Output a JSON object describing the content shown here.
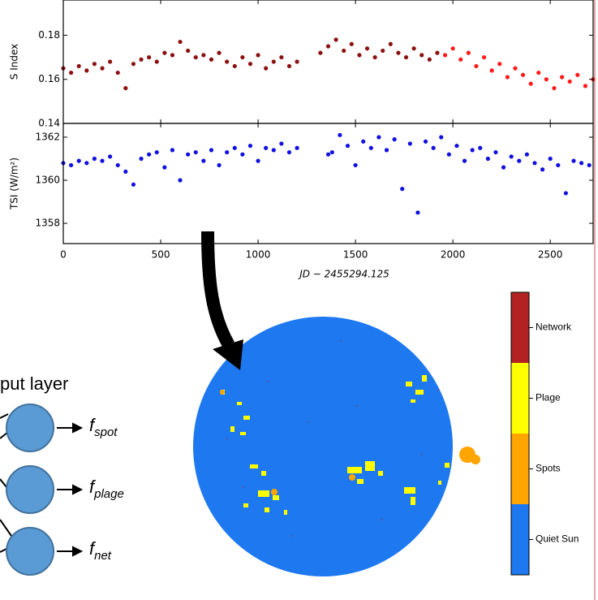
{
  "chart_data": [
    {
      "type": "scatter",
      "ylabel": "S Index",
      "xlim": [
        0,
        2720
      ],
      "xticks": [
        0,
        500,
        1000,
        1500,
        2000,
        2500
      ],
      "ylim": [
        0.14,
        0.196
      ],
      "yticks": [
        0.14,
        0.16,
        0.18
      ],
      "series": [
        {
          "color": "#8b1010",
          "x": [
            0,
            40,
            80,
            120,
            160,
            200,
            240,
            280,
            320,
            360,
            400,
            440,
            480,
            520,
            560,
            600,
            640,
            680,
            720,
            760,
            800,
            840,
            880,
            920,
            960,
            1000,
            1040,
            1080,
            1120,
            1160,
            1200,
            1320,
            1360,
            1400,
            1440,
            1480,
            1520,
            1560,
            1600,
            1640,
            1680,
            1720,
            1760,
            1800,
            1840,
            1880,
            1920
          ],
          "values": [
            0.165,
            0.163,
            0.166,
            0.164,
            0.167,
            0.165,
            0.168,
            0.163,
            0.156,
            0.167,
            0.169,
            0.17,
            0.168,
            0.172,
            0.171,
            0.177,
            0.173,
            0.17,
            0.171,
            0.169,
            0.172,
            0.168,
            0.166,
            0.17,
            0.167,
            0.171,
            0.165,
            0.168,
            0.17,
            0.166,
            0.168,
            0.172,
            0.175,
            0.178,
            0.173,
            0.176,
            0.171,
            0.174,
            0.17,
            0.173,
            0.176,
            0.172,
            0.17,
            0.174,
            0.171,
            0.169,
            0.172
          ]
        },
        {
          "color": "#ff1a1a",
          "x": [
            1960,
            2000,
            2040,
            2080,
            2120,
            2160,
            2200,
            2240,
            2280,
            2320,
            2360,
            2400,
            2440,
            2480,
            2520,
            2560,
            2600,
            2640,
            2680,
            2720
          ],
          "values": [
            0.171,
            0.174,
            0.169,
            0.172,
            0.166,
            0.17,
            0.164,
            0.167,
            0.161,
            0.165,
            0.162,
            0.158,
            0.163,
            0.16,
            0.156,
            0.161,
            0.159,
            0.162,
            0.157,
            0.16
          ]
        }
      ]
    },
    {
      "type": "scatter",
      "ylabel": "TSI (W/m²)",
      "xlabel": "JD − 2455294.125",
      "xlim": [
        0,
        2720
      ],
      "xticks": [
        0,
        500,
        1000,
        1500,
        2000,
        2500
      ],
      "ylim": [
        1357.06,
        1362.64
      ],
      "yticks": [
        1358,
        1360,
        1362
      ],
      "series": [
        {
          "color": "#1010e0",
          "x": [
            0,
            40,
            80,
            120,
            160,
            200,
            240,
            280,
            320,
            360,
            400,
            440,
            480,
            520,
            560,
            600,
            640,
            680,
            720,
            760,
            800,
            840,
            880,
            920,
            960,
            1000,
            1040,
            1080,
            1120,
            1160,
            1200,
            1360,
            1380,
            1420,
            1460,
            1500,
            1540,
            1580,
            1620,
            1660,
            1700,
            1740,
            1780,
            1820,
            1860,
            1900,
            1940,
            1980,
            2020,
            2060,
            2100,
            2140,
            2180,
            2220,
            2260,
            2300,
            2340,
            2380,
            2420,
            2460,
            2500,
            2540,
            2580,
            2620,
            2660,
            2700
          ],
          "values": [
            1360.8,
            1360.7,
            1360.9,
            1360.8,
            1361.0,
            1360.9,
            1361.1,
            1360.7,
            1360.4,
            1359.8,
            1361.0,
            1361.2,
            1361.3,
            1360.6,
            1361.4,
            1360.0,
            1361.2,
            1361.3,
            1360.9,
            1361.4,
            1360.7,
            1361.3,
            1361.5,
            1361.2,
            1361.6,
            1360.9,
            1361.5,
            1361.4,
            1361.7,
            1361.3,
            1361.5,
            1361.2,
            1361.3,
            1362.1,
            1361.6,
            1360.7,
            1361.8,
            1361.5,
            1362.0,
            1361.4,
            1361.9,
            1359.6,
            1361.7,
            1358.5,
            1361.8,
            1361.5,
            1362.0,
            1361.2,
            1361.6,
            1360.9,
            1361.4,
            1361.5,
            1361.0,
            1361.3,
            1360.6,
            1361.1,
            1360.9,
            1361.2,
            1360.8,
            1360.5,
            1361.0,
            1360.7,
            1359.4,
            1360.9,
            1360.8,
            1360.7
          ]
        }
      ]
    }
  ],
  "diagram": {
    "title": "put layer",
    "outputs": [
      {
        "symbol": "f",
        "sub": "spot"
      },
      {
        "symbol": "f",
        "sub": "plage"
      },
      {
        "symbol": "f",
        "sub": "net"
      }
    ]
  },
  "colorbar": {
    "labels": [
      "Network",
      "Plage",
      "Spots",
      "Quiet Sun"
    ],
    "colors": [
      "#b22222",
      "#ffff00",
      "#ffa500",
      "#1e78f0"
    ]
  }
}
